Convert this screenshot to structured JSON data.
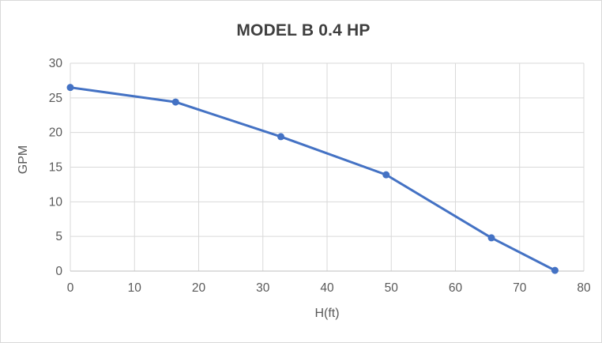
{
  "chart_data": {
    "type": "line",
    "title": "MODEL B 0.4 HP",
    "xlabel": "H(ft)",
    "ylabel": "GPM",
    "x": [
      0,
      16.4,
      32.8,
      49.2,
      65.6,
      75.5
    ],
    "y": [
      26.5,
      24.4,
      19.4,
      13.9,
      4.8,
      0.1
    ],
    "xlim": [
      0,
      80
    ],
    "x_tick_step": 10,
    "ylim": [
      0,
      30
    ],
    "y_tick_step": 5,
    "grid": true,
    "legend": false,
    "marker": "circle"
  },
  "colors": {
    "series": "#4472C4",
    "gridline": "#D9D9D9",
    "axis_line": "#BFBFBF",
    "tick_text": "#595959",
    "axis_title_text": "#595959",
    "title_text": "#3F3F3F",
    "chart_border": "#D9D9D9",
    "background": "#FFFFFF"
  }
}
